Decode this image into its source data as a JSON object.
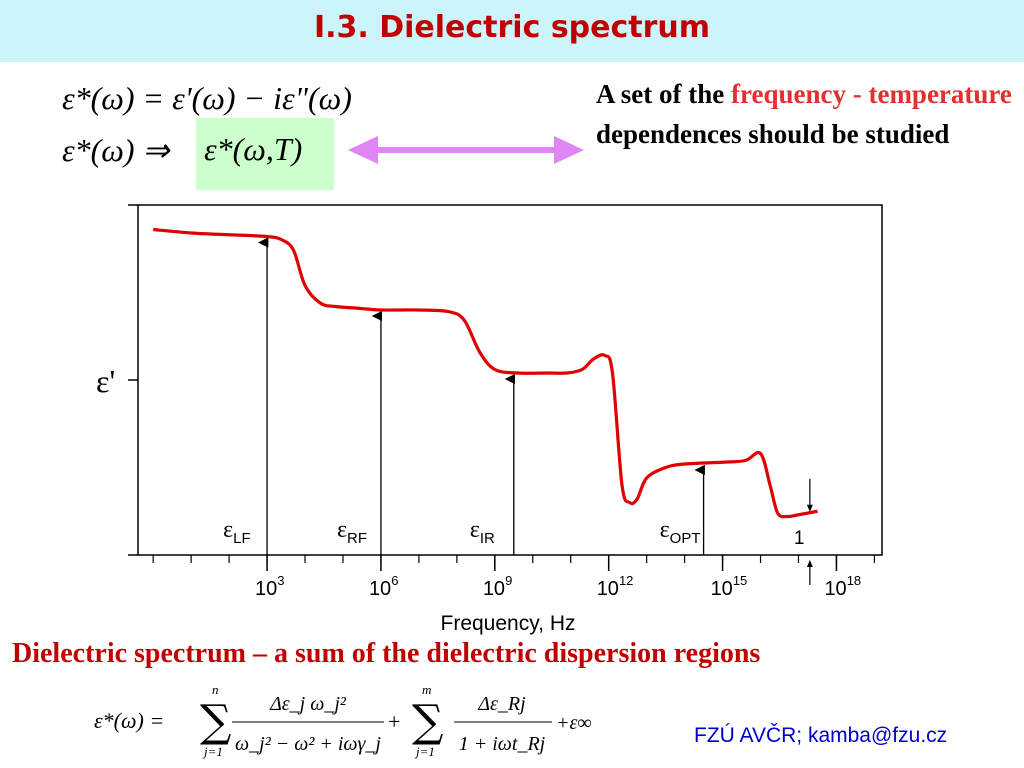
{
  "slide": {
    "title": "I.3. Dielectric spectrum",
    "equation_1": "ε*(ω) = ε'(ω) − iε\"(ω)",
    "equation_2_left": "ε*(ω) ⇒",
    "equation_2_right": "ε*(ω,T)",
    "note": {
      "part1": "A set of the ",
      "part2": "frequency - temperature",
      "part3": " dependences should be studied"
    },
    "subtitle": "Dielectric spectrum – a sum of the dielectric dispersion regions",
    "formula": {
      "lhs": "ε*(ω) =",
      "sum1_top": "n",
      "sum1_bottom": "j=1",
      "frac1_num": "Δε_j ω_j²",
      "frac1_den": "ω_j² − ω² + iωγ_j",
      "plus": "+",
      "sum2_top": "m",
      "sum2_bottom": "j=1",
      "frac2_num": "Δε_Rj",
      "frac2_den": "1 + iωt_Rj",
      "tail": "+ε∞"
    },
    "credit": "FZÚ AVČR; kamba@fzu.cz",
    "arrow_color": "#e085f5",
    "accent_color": "#c00000",
    "highlight_color": "#ccffcc"
  },
  "chart_data": {
    "type": "line",
    "xlabel": "Frequency, Hz",
    "ylabel": "ε'",
    "x_scale": "log",
    "x_ticks": [
      {
        "base": "10",
        "exp": "3",
        "value": 1000.0
      },
      {
        "base": "10",
        "exp": "6",
        "value": 1000000.0
      },
      {
        "base": "10",
        "exp": "9",
        "value": 1000000000.0
      },
      {
        "base": "10",
        "exp": "12",
        "value": 1000000000000.0
      },
      {
        "base": "10",
        "exp": "15",
        "value": 1000000000000000.0
      },
      {
        "base": "10",
        "exp": "18",
        "value": 1e+18
      }
    ],
    "curve_color": "#e00000",
    "series": [
      {
        "log10_freq": [
          0,
          1,
          2,
          3,
          3.4,
          3.7,
          4.0,
          4.4,
          4.8,
          5.4,
          6,
          7,
          7.8,
          8.2,
          8.6,
          9.0,
          9.6,
          10.4,
          10.9,
          11.3,
          11.6,
          11.9,
          12.1,
          12.35,
          12.55,
          12.75,
          13.0,
          13.5,
          14,
          15,
          15.6,
          16.0,
          16.25,
          16.45,
          16.7,
          17.0,
          17.5
        ],
        "relative_epsilon": [
          0.93,
          0.92,
          0.915,
          0.91,
          0.9,
          0.87,
          0.77,
          0.72,
          0.71,
          0.705,
          0.7,
          0.7,
          0.695,
          0.67,
          0.58,
          0.53,
          0.52,
          0.52,
          0.52,
          0.53,
          0.56,
          0.57,
          0.52,
          0.2,
          0.15,
          0.16,
          0.22,
          0.25,
          0.26,
          0.265,
          0.27,
          0.29,
          0.2,
          0.12,
          0.11,
          0.115,
          0.125
        ]
      }
    ],
    "levels": [
      {
        "name": "εLF",
        "label_main": "ε",
        "label_sub": "LF",
        "log10_freq": 3.0,
        "relative_epsilon": 0.91
      },
      {
        "name": "εRF",
        "label_main": "ε",
        "label_sub": "RF",
        "log10_freq": 6.0,
        "relative_epsilon": 0.7
      },
      {
        "name": "εIR",
        "label_main": "ε",
        "label_sub": "IR",
        "log10_freq": 9.5,
        "relative_epsilon": 0.52
      },
      {
        "name": "εOPT",
        "label_main": "ε",
        "label_sub": "OPT",
        "log10_freq": 14.5,
        "relative_epsilon": 0.26
      }
    ],
    "unity_marker": {
      "label": "1",
      "log10_freq": 17.3,
      "relative_epsilon": 0.115
    },
    "x_range_log10": [
      -0.4,
      19.2
    ],
    "y_range": [
      0,
      1
    ]
  }
}
